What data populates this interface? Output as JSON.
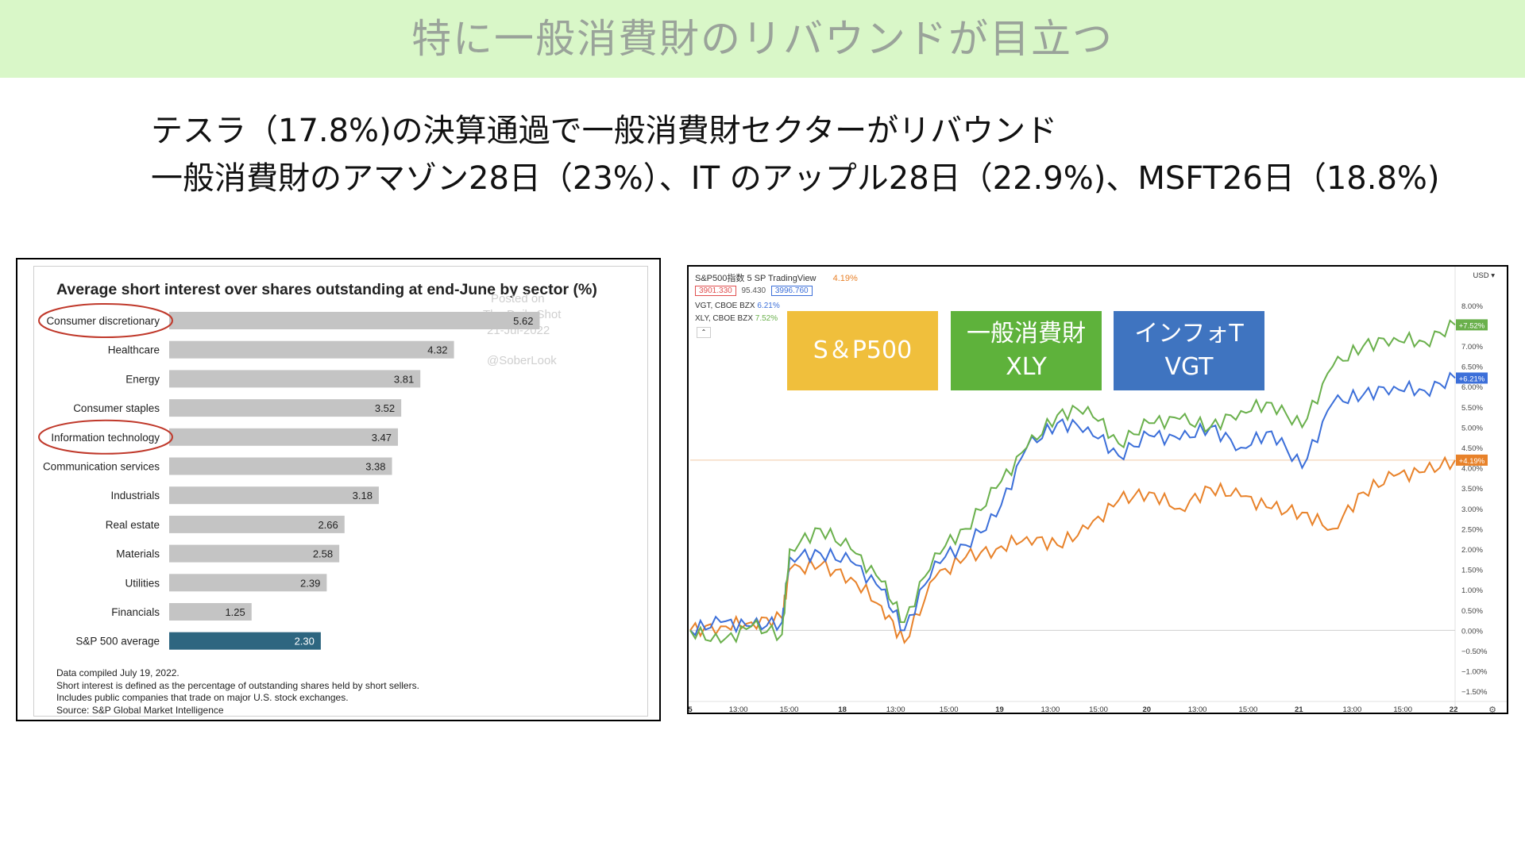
{
  "slide": {
    "title": "特に一般消費財のリバウンドが目立つ",
    "line1": "テスラ（17.8%)の決算通過で一般消費財セクターがリバウンド",
    "line2": "一般消費財のアマゾン28日（23%）、IT のアップル28日（22.9%)、MSFT26日（18.8%)"
  },
  "colors": {
    "banner": "#d9f7c8",
    "bar_gray": "#c4c4c4",
    "bar_highlight": "#2e6680",
    "circle": "#c0392b",
    "spx": "#e8822a",
    "xly": "#6ab04c",
    "vgt": "#3c6fd9"
  },
  "chart_data": [
    {
      "type": "bar",
      "orientation": "horizontal",
      "title": "Average short interest over shares outstanding at end-June by sector (%)",
      "categories": [
        "Consumer discretionary",
        "Healthcare",
        "Energy",
        "Consumer staples",
        "Information technology",
        "Communication services",
        "Industrials",
        "Real estate",
        "Materials",
        "Utilities",
        "Financials",
        "S&P 500 average"
      ],
      "values": [
        5.62,
        4.32,
        3.81,
        3.52,
        3.47,
        3.38,
        3.18,
        2.66,
        2.58,
        2.39,
        1.25,
        2.3
      ],
      "value_labels": [
        "5.62",
        "4.32",
        "3.81",
        "3.52",
        "3.47",
        "3.38",
        "3.18",
        "2.66",
        "2.58",
        "2.39",
        "1.25",
        "2.30"
      ],
      "highlighted": [
        "Consumer discretionary",
        "Information technology"
      ],
      "watermark": [
        "Posted on",
        "The Daily Shot",
        "21-Jul-2022",
        "@SoberLook"
      ],
      "notes": [
        "Data compiled July 19, 2022.",
        "Short interest is defined as the percentage of outstanding shares held by short sellers.",
        "Includes public companies that trade on major U.S. stock exchanges.",
        "Source: S&P Global Market Intelligence"
      ]
    },
    {
      "type": "line",
      "header": {
        "symbol": "S&P500指数",
        "interval": "5",
        "exchange": "SP",
        "source": "TradingView",
        "pct": "4.19%",
        "box1": "3901.330",
        "mid": "95.430",
        "box2": "3996.760"
      },
      "series_labels": [
        {
          "name": "VGT, CBOE BZX",
          "pct": "6.21%"
        },
        {
          "name": "XLY, CBOE BZX",
          "pct": "7.52%"
        }
      ],
      "legend_boxes": [
        {
          "line1": "S＆P500",
          "line2": ""
        },
        {
          "line1": "一般消費財",
          "line2": "XLY"
        },
        {
          "line1": "インフォT",
          "line2": "VGT"
        }
      ],
      "currency": "USD",
      "y_ticks": [
        "8.00%",
        "7.50%",
        "7.00%",
        "6.50%",
        "6.00%",
        "5.50%",
        "5.00%",
        "4.50%",
        "4.00%",
        "3.50%",
        "3.00%",
        "2.50%",
        "2.00%",
        "1.50%",
        "1.00%",
        "0.50%",
        "0.00%",
        "−0.50%",
        "−1.00%",
        "−1.50%"
      ],
      "y_tick_values": [
        8,
        7.5,
        7,
        6.5,
        6,
        5.5,
        5,
        4.5,
        4,
        3.5,
        3,
        2.5,
        2,
        1.5,
        1,
        0.5,
        0,
        -0.5,
        -1,
        -1.5
      ],
      "x_ticks": [
        "5",
        "13:00",
        "15:00",
        "18",
        "13:00",
        "15:00",
        "19",
        "13:00",
        "15:00",
        "20",
        "13:00",
        "15:00",
        "21",
        "13:00",
        "15:00",
        "22"
      ],
      "x_tick_pos": [
        0.0,
        0.038,
        0.078,
        0.12,
        0.162,
        0.204,
        0.244,
        0.284,
        0.322,
        0.36,
        0.4,
        0.44,
        0.48,
        0.522,
        0.562,
        0.602
      ],
      "last_labels": [
        {
          "name": "XLY",
          "text": "+7.52%",
          "value": 7.52
        },
        {
          "name": "VGT",
          "text": "+6.21%",
          "value": 6.21
        },
        {
          "name": "S&P500",
          "text": "+4.19%",
          "value": 4.19
        }
      ],
      "series": [
        {
          "name": "S&P500",
          "x": [
            0,
            0.04,
            0.08,
            0.12,
            0.13,
            0.17,
            0.21,
            0.25,
            0.28,
            0.32,
            0.36,
            0.4,
            0.44,
            0.48,
            0.52,
            0.56,
            0.6,
            0.64,
            0.68,
            0.72,
            0.76,
            0.8,
            0.84,
            0.88,
            0.92,
            0.96,
            1.0
          ],
          "values": [
            0,
            0.1,
            0.2,
            0.3,
            1.5,
            1.6,
            1.3,
            0.6,
            -0.3,
            1.3,
            1.8,
            2.0,
            2.3,
            2.1,
            2.5,
            3.2,
            3.4,
            3.0,
            3.5,
            3.3,
            3.0,
            2.9,
            2.5,
            3.4,
            3.8,
            3.9,
            4.19
          ]
        },
        {
          "name": "VGT",
          "x": [
            0,
            0.04,
            0.08,
            0.12,
            0.13,
            0.17,
            0.21,
            0.25,
            0.28,
            0.32,
            0.36,
            0.4,
            0.44,
            0.48,
            0.52,
            0.56,
            0.6,
            0.64,
            0.68,
            0.72,
            0.76,
            0.8,
            0.84,
            0.88,
            0.92,
            0.96,
            1.0
          ],
          "values": [
            0,
            0.2,
            0.1,
            0.2,
            1.8,
            1.9,
            1.7,
            1.0,
            0.0,
            1.7,
            2.1,
            2.8,
            4.5,
            5.1,
            5.0,
            4.3,
            4.8,
            4.7,
            5.0,
            4.5,
            4.9,
            4.0,
            5.6,
            5.8,
            6.0,
            5.9,
            6.21
          ]
        },
        {
          "name": "XLY",
          "x": [
            0,
            0.04,
            0.08,
            0.12,
            0.13,
            0.17,
            0.21,
            0.25,
            0.28,
            0.32,
            0.36,
            0.4,
            0.44,
            0.48,
            0.52,
            0.56,
            0.6,
            0.64,
            0.68,
            0.72,
            0.76,
            0.8,
            0.84,
            0.88,
            0.92,
            0.96,
            1.0
          ],
          "values": [
            0,
            -0.3,
            0.1,
            -0.1,
            2.0,
            2.5,
            2.0,
            1.2,
            0.2,
            1.9,
            2.5,
            3.5,
            4.5,
            5.3,
            5.5,
            4.6,
            5.1,
            5.2,
            5.0,
            5.4,
            5.6,
            5.0,
            6.5,
            7.0,
            7.2,
            7.1,
            7.52
          ]
        }
      ]
    }
  ]
}
